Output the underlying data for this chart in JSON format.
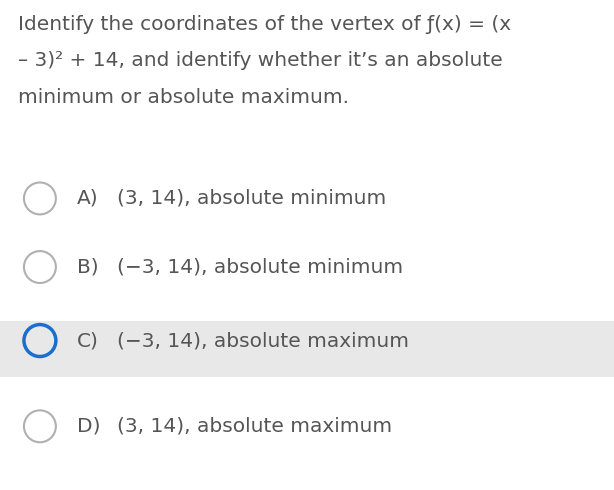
{
  "background_color": "#ffffff",
  "question_lines": [
    "Identify the coordinates of the vertex of ƒ(x) = (x",
    "– 3)² + 14, and identify whether it’s an absolute",
    "minimum or absolute maximum."
  ],
  "options": [
    {
      "label": "A)",
      "text": "(3, 14), absolute minimum",
      "selected": false,
      "highlighted": false
    },
    {
      "label": "B)",
      "text": "(−3, 14), absolute minimum",
      "selected": false,
      "highlighted": false
    },
    {
      "label": "C)",
      "text": "(−3, 14), absolute maximum",
      "selected": true,
      "highlighted": true
    },
    {
      "label": "D)",
      "text": "(3, 14), absolute maximum",
      "selected": false,
      "highlighted": false
    }
  ],
  "circle_color_default": "#b0b0b0",
  "circle_color_selected": "#1a6fcc",
  "highlight_color": "#e8e8e8",
  "text_color": "#555555",
  "font_size_question": 14.5,
  "font_size_option_label": 14.5,
  "font_size_option_text": 14.5,
  "fig_width": 6.14,
  "fig_height": 4.9,
  "dpi": 100
}
